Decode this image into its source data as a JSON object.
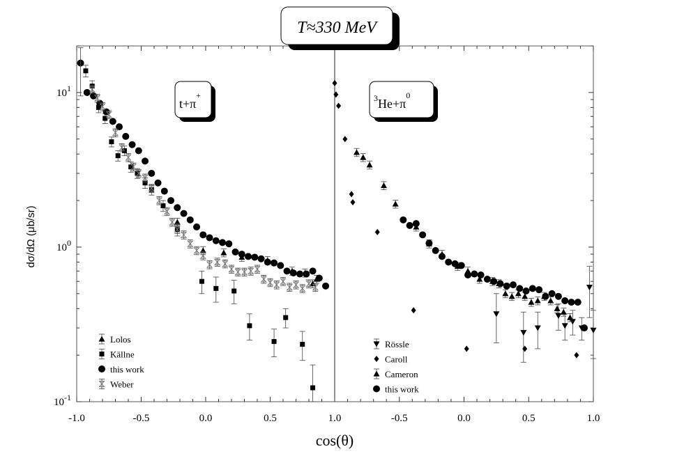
{
  "chart_data": {
    "type": "scatter",
    "title": "T≈330 MeV",
    "xlabel": "cos(θ)",
    "ylabel": "dσ/dΩ (μb/sr)",
    "yscale": "log",
    "ylim": [
      0.1,
      20
    ],
    "y_tick_labels": [
      {
        "value": 10,
        "base": "10",
        "exp": "1"
      },
      {
        "value": 1,
        "base": "10",
        "exp": "0"
      },
      {
        "value": 0.1,
        "base": "10",
        "exp": "-1"
      }
    ],
    "panels": [
      {
        "id": "left",
        "label": {
          "base": "t+π",
          "sup": "+"
        },
        "xlim": [
          -1.0,
          1.0
        ],
        "x_tick_labels": [
          "-1.0",
          "-0.5",
          "0.0",
          "0.5",
          "1.0"
        ],
        "series": [
          {
            "name": "Lolos",
            "marker": "triangle-up",
            "errors": true,
            "x": [
              -0.22,
              -0.02,
              0.14,
              0.28,
              0.48,
              0.67,
              0.77,
              0.83,
              0.86
            ],
            "y": [
              1.45,
              0.95,
              0.92,
              0.86,
              0.82,
              0.7,
              0.68,
              0.58,
              0.62
            ]
          },
          {
            "name": "Källne",
            "marker": "square",
            "errors": true,
            "x": [
              -0.93,
              -0.88,
              -0.83,
              -0.78,
              -0.73,
              -0.68,
              -0.63,
              -0.58,
              -0.53,
              -0.47,
              -0.42,
              -0.33,
              -0.22,
              -0.03,
              0.08,
              0.22,
              0.34,
              0.53,
              0.62,
              0.75,
              0.83
            ],
            "y": [
              13.8,
              11.0,
              8.0,
              6.8,
              4.8,
              3.9,
              4.2,
              3.3,
              3.0,
              2.6,
              2.35,
              1.85,
              1.3,
              0.6,
              0.54,
              0.52,
              0.31,
              0.245,
              0.35,
              0.235,
              0.123
            ],
            "yerr": [
              1.2,
              0.9,
              0.6,
              0.5,
              0.35,
              0.3,
              0.3,
              0.25,
              0.22,
              0.2,
              0.18,
              0.15,
              0.12,
              0.1,
              0.1,
              0.09,
              0.06,
              0.05,
              0.05,
              0.05,
              0.05
            ]
          },
          {
            "name": "this work",
            "marker": "circle",
            "errors": false,
            "x": [
              -0.97,
              -0.92,
              -0.87,
              -0.82,
              -0.77,
              -0.72,
              -0.67,
              -0.62,
              -0.57,
              -0.52,
              -0.47,
              -0.42,
              -0.37,
              -0.32,
              -0.27,
              -0.22,
              -0.17,
              -0.12,
              -0.07,
              -0.02,
              0.03,
              0.08,
              0.13,
              0.18,
              0.23,
              0.28,
              0.33,
              0.38,
              0.43,
              0.48,
              0.53,
              0.58,
              0.63,
              0.68,
              0.73,
              0.78,
              0.83,
              0.88,
              0.93
            ],
            "y": [
              15.5,
              10.0,
              9.5,
              8.5,
              7.5,
              6.5,
              6.0,
              5.2,
              4.6,
              4.2,
              3.6,
              3.0,
              2.6,
              2.3,
              2.0,
              1.8,
              1.65,
              1.5,
              1.35,
              1.2,
              1.15,
              1.1,
              1.07,
              1.05,
              0.93,
              0.9,
              0.87,
              0.86,
              0.84,
              0.8,
              0.79,
              0.76,
              0.7,
              0.68,
              0.67,
              0.67,
              0.7,
              0.63,
              0.56
            ]
          },
          {
            "name": "Weber",
            "marker": "hourglass",
            "errors": true,
            "x": [
              -0.88,
              -0.84,
              -0.8,
              -0.75,
              -0.7,
              -0.65,
              -0.6,
              -0.56,
              -0.52,
              -0.47,
              -0.42,
              -0.36,
              -0.3,
              -0.26,
              -0.22,
              -0.17,
              -0.12,
              -0.07,
              -0.02,
              0.03,
              0.09,
              0.15,
              0.2,
              0.25,
              0.3,
              0.35,
              0.4,
              0.45,
              0.5,
              0.55,
              0.6,
              0.65,
              0.7,
              0.75,
              0.8,
              0.85
            ],
            "y": [
              10.5,
              9.2,
              8.1,
              7.2,
              5.5,
              4.4,
              3.8,
              3.3,
              3.0,
              2.8,
              2.4,
              2.0,
              1.7,
              1.45,
              1.3,
              1.2,
              1.05,
              0.95,
              0.88,
              0.77,
              0.8,
              0.78,
              0.72,
              0.69,
              0.69,
              0.7,
              0.72,
              0.62,
              0.59,
              0.57,
              0.6,
              0.55,
              0.57,
              0.54,
              0.58,
              0.55
            ]
          }
        ]
      },
      {
        "id": "right",
        "label": {
          "pre": "3",
          "base": "He+π",
          "sup": "0"
        },
        "xlim": [
          -1.0,
          1.0
        ],
        "x_tick_labels": [
          "-0.5",
          "0.0",
          "0.5",
          "1.0"
        ],
        "series": [
          {
            "name": "Rössle",
            "marker": "triangle-down",
            "errors": true,
            "x": [
              0.25,
              0.46,
              0.57,
              0.73,
              0.78,
              0.84,
              0.91,
              0.97,
              1.0
            ],
            "y": [
              0.37,
              0.28,
              0.3,
              0.36,
              0.31,
              0.33,
              0.3,
              0.55,
              0.29
            ],
            "yerr": [
              0.13,
              0.1,
              0.08,
              0.07,
              0.06,
              0.06,
              0.05,
              0.2,
              0.1
            ]
          },
          {
            "name": "Caroll",
            "marker": "diamond",
            "errors": false,
            "x": [
              -1.0,
              -0.99,
              -0.97,
              -0.92,
              -0.87,
              -0.86,
              -0.67,
              -0.39,
              0.02,
              0.47,
              0.87
            ],
            "y": [
              11.5,
              9.7,
              8.2,
              5.0,
              2.2,
              1.95,
              1.25,
              0.39,
              0.22,
              0.22,
              0.2
            ]
          },
          {
            "name": "Cameron",
            "marker": "triangle-up",
            "errors": true,
            "x": [
              -0.83,
              -0.78,
              -0.73,
              -0.62,
              -0.53,
              -0.37,
              -0.27,
              -0.17,
              -0.05,
              0.03,
              0.12,
              0.22,
              0.27,
              0.32,
              0.37,
              0.42,
              0.47,
              0.52,
              0.57,
              0.62,
              0.67,
              0.72,
              0.77,
              0.82
            ],
            "y": [
              4.1,
              3.8,
              3.4,
              2.5,
              1.9,
              1.35,
              1.05,
              0.9,
              0.75,
              0.7,
              0.62,
              0.6,
              0.58,
              0.5,
              0.48,
              0.5,
              0.48,
              0.44,
              0.45,
              0.48,
              0.45,
              0.4,
              0.38,
              0.35
            ]
          },
          {
            "name": "this work",
            "marker": "circle",
            "errors": false,
            "x": [
              -0.47,
              -0.42,
              -0.37,
              -0.32,
              -0.27,
              -0.22,
              -0.17,
              -0.12,
              -0.07,
              -0.02,
              0.03,
              0.08,
              0.13,
              0.18,
              0.23,
              0.28,
              0.33,
              0.38,
              0.43,
              0.48,
              0.53,
              0.58,
              0.63,
              0.68,
              0.73,
              0.78,
              0.83,
              0.88,
              0.93
            ],
            "y": [
              1.5,
              1.38,
              1.42,
              1.2,
              1.06,
              0.95,
              0.87,
              0.8,
              0.78,
              0.76,
              0.66,
              0.67,
              0.66,
              0.62,
              0.6,
              0.58,
              0.56,
              0.57,
              0.54,
              0.52,
              0.54,
              0.53,
              0.48,
              0.5,
              0.48,
              0.45,
              0.44,
              0.44,
              0.3
            ]
          }
        ]
      }
    ],
    "legends": [
      {
        "panel": "left",
        "placement": "bottom-left",
        "entries": [
          "Lolos",
          "Källne",
          "this work",
          "Weber"
        ]
      },
      {
        "panel": "right",
        "placement": "bottom-left",
        "entries": [
          "Rössle",
          "Caroll",
          "Cameron",
          "this work"
        ]
      }
    ]
  }
}
